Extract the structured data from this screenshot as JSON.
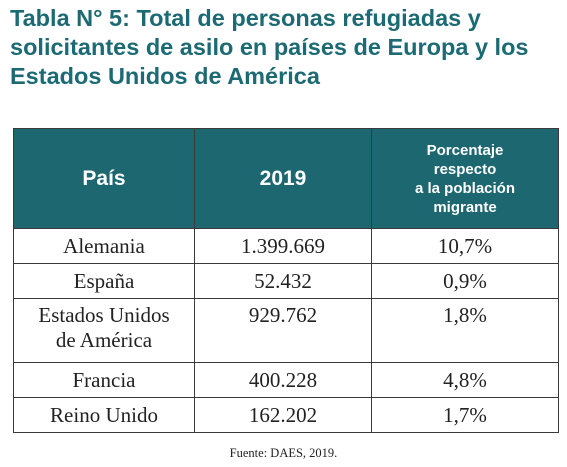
{
  "title": "Tabla N° 5: Total de personas refugiadas y solicitantes de asilo en países de Europa y los Estados Unidos de América",
  "table": {
    "headers": [
      "País",
      "2019",
      "Porcentaje\nrespecto\na la población\nmigrante"
    ],
    "rows": [
      {
        "country": "Alemania",
        "value": "1.399.669",
        "percent": "10,7%"
      },
      {
        "country": "España",
        "value": "52.432",
        "percent": "0,9%"
      },
      {
        "country": "Estados Unidos\nde América",
        "value": "929.762",
        "percent": "1,8%"
      },
      {
        "country": "Francia",
        "value": "400.228",
        "percent": "4,8%"
      },
      {
        "country": "Reino Unido",
        "value": "162.202",
        "percent": "1,7%"
      }
    ]
  },
  "source": "Fuente: DAES, 2019.",
  "colors": {
    "accent": "#1b6a74",
    "header_bg": "#1c6770",
    "header_text": "#ffffff",
    "border": "#3a3a3a"
  }
}
